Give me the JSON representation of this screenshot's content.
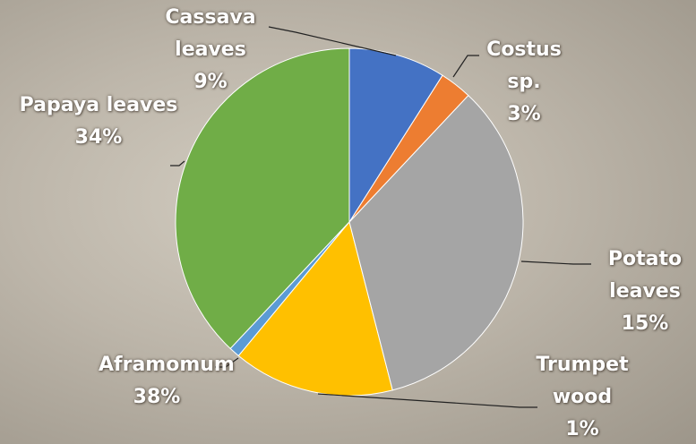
{
  "chart_data": {
    "type": "pie",
    "categories": [
      "Cassava leaves",
      "Costus sp.",
      "Papaya leaves",
      "Potato leaves",
      "Trumpet wood",
      "Aframomum"
    ],
    "values": [
      9,
      3,
      34,
      15,
      1,
      38
    ],
    "value_labels": [
      "9%",
      "3%",
      "34%",
      "15%",
      "1%",
      "38%"
    ],
    "colors": [
      "#4472c4",
      "#ed7d31",
      "#a5a5a5",
      "#ffc000",
      "#5b9bd5",
      "#70ad47"
    ]
  }
}
